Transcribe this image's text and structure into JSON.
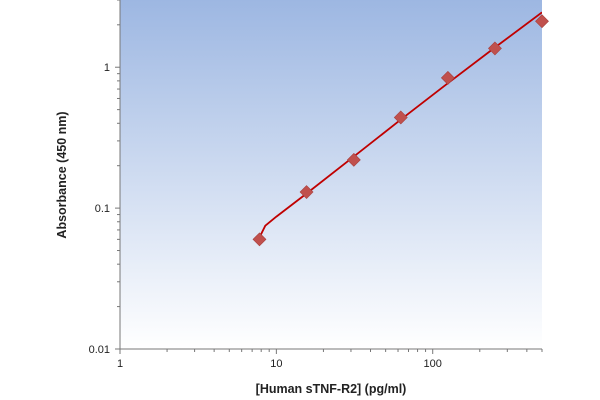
{
  "chart_data": {
    "type": "scatter",
    "title": "",
    "xlabel": "[Human sTNF-R2] (pg/ml)",
    "ylabel": "Absorbance (450 nm)",
    "x_scale": "log",
    "y_scale": "log",
    "xlim": [
      1,
      500
    ],
    "ylim": [
      0.01,
      3
    ],
    "x_ticks": [
      1,
      10,
      100
    ],
    "x_tick_labels": [
      "1",
      "10",
      "100"
    ],
    "y_ticks": [
      0.01,
      0.1,
      1
    ],
    "y_tick_labels": [
      "0.01",
      "0.1",
      "1"
    ],
    "grid": false,
    "legend": "none",
    "series": [
      {
        "points": [
          {
            "x": 7.8,
            "y": 0.06
          },
          {
            "x": 15.6,
            "y": 0.13
          },
          {
            "x": 31.3,
            "y": 0.22
          },
          {
            "x": 62.5,
            "y": 0.44
          },
          {
            "x": 125,
            "y": 0.84
          },
          {
            "x": 250,
            "y": 1.36
          },
          {
            "x": 500,
            "y": 2.12
          }
        ],
        "marker": "diamond",
        "color": "#c0504d"
      }
    ],
    "fit_curve": {
      "color": "#c00000",
      "points": [
        {
          "x": 7.8,
          "y": 0.062
        },
        {
          "x": 8.5,
          "y": 0.075
        },
        {
          "x": 10,
          "y": 0.087
        },
        {
          "x": 15.6,
          "y": 0.127
        },
        {
          "x": 31.3,
          "y": 0.232
        },
        {
          "x": 62.5,
          "y": 0.425
        },
        {
          "x": 125,
          "y": 0.77
        },
        {
          "x": 250,
          "y": 1.38
        },
        {
          "x": 500,
          "y": 2.45
        }
      ]
    },
    "plot_background": {
      "top": "#9db7e2",
      "bottom": "#ffffff"
    }
  }
}
